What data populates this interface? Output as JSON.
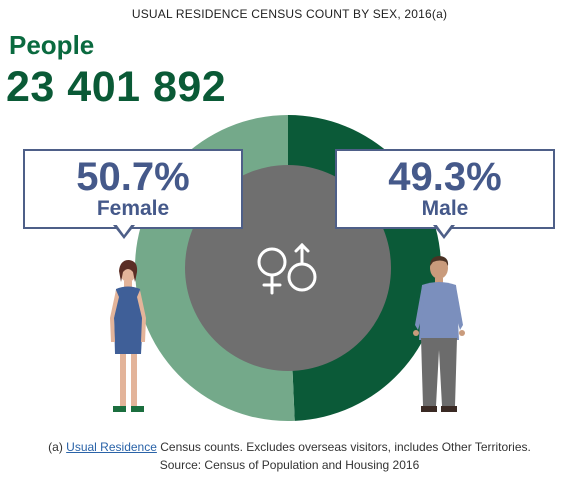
{
  "title": "USUAL RESIDENCE CENSUS COUNT BY SEX, 2016(a)",
  "people_label": "People",
  "people_total": "23 401 892",
  "callouts": {
    "female": {
      "percent": "50.7%",
      "label": "Female"
    },
    "male": {
      "percent": "49.3%",
      "label": "Male"
    }
  },
  "footnote": {
    "prefix": "(a)",
    "link": "Usual Residence",
    "text": "Census counts. Excludes overseas visitors, includes Other Territories.",
    "source": "Source: Census of Population and Housing 2016"
  },
  "chart_data": {
    "type": "pie",
    "title": "USUAL RESIDENCE CENSUS COUNT BY SEX, 2016(a)",
    "categories": [
      "Female",
      "Male"
    ],
    "values": [
      50.7,
      49.3
    ],
    "unit": "%",
    "colors": {
      "Female": "#74a98a",
      "Male": "#0b5a38",
      "center": "#6f6f6f"
    },
    "center_icon": "gender-symbols-icon"
  }
}
